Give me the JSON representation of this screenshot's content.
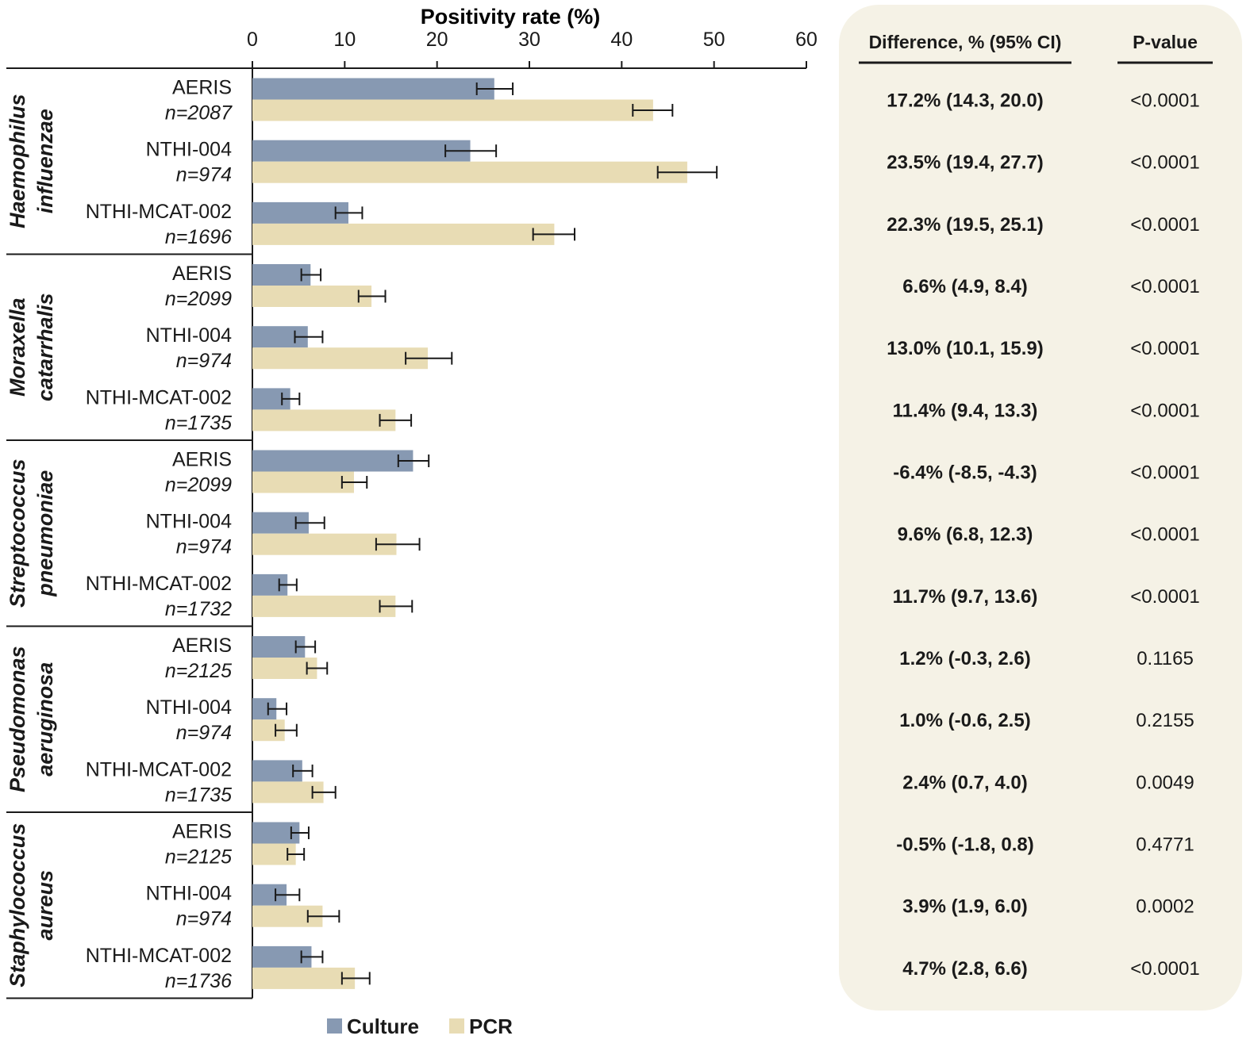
{
  "chart_data": {
    "type": "bar",
    "orientation": "horizontal",
    "xlabel": "Positivity rate (%)",
    "xlim": [
      0,
      60
    ],
    "xticks": [
      0,
      10,
      20,
      30,
      40,
      50,
      60
    ],
    "legend_position": "bottom",
    "series_names": [
      "Culture",
      "PCR"
    ],
    "table_headers": [
      "Difference, % (95% CI)",
      "P-value"
    ],
    "groups": [
      {
        "organism": [
          "Haemophilus",
          "influenzae"
        ],
        "rows": [
          {
            "study": "AERIS",
            "n": "n=2087",
            "culture": 26.2,
            "culture_ci": [
              24.3,
              28.2
            ],
            "pcr": 43.4,
            "pcr_ci": [
              41.2,
              45.5
            ],
            "difference": "17.2% (14.3, 20.0)",
            "pvalue": "<0.0001"
          },
          {
            "study": "NTHI-004",
            "n": "n=974",
            "culture": 23.6,
            "culture_ci": [
              20.9,
              26.4
            ],
            "pcr": 47.1,
            "pcr_ci": [
              43.9,
              50.3
            ],
            "difference": "23.5% (19.4, 27.7)",
            "pvalue": "<0.0001"
          },
          {
            "study": "NTHI-MCAT-002",
            "n": "n=1696",
            "culture": 10.4,
            "culture_ci": [
              9.0,
              11.9
            ],
            "pcr": 32.7,
            "pcr_ci": [
              30.4,
              34.9
            ],
            "difference": "22.3% (19.5, 25.1)",
            "pvalue": "<0.0001"
          }
        ]
      },
      {
        "organism": [
          "Moraxella",
          "catarrhalis"
        ],
        "rows": [
          {
            "study": "AERIS",
            "n": "n=2099",
            "culture": 6.3,
            "culture_ci": [
              5.3,
              7.4
            ],
            "pcr": 12.9,
            "pcr_ci": [
              11.5,
              14.4
            ],
            "difference": "6.6% (4.9, 8.4)",
            "pvalue": "<0.0001"
          },
          {
            "study": "NTHI-004",
            "n": "n=974",
            "culture": 6.0,
            "culture_ci": [
              4.6,
              7.6
            ],
            "pcr": 19.0,
            "pcr_ci": [
              16.6,
              21.6
            ],
            "difference": "13.0% (10.1, 15.9)",
            "pvalue": "<0.0001"
          },
          {
            "study": "NTHI-MCAT-002",
            "n": "n=1735",
            "culture": 4.1,
            "culture_ci": [
              3.2,
              5.1
            ],
            "pcr": 15.5,
            "pcr_ci": [
              13.8,
              17.2
            ],
            "difference": "11.4% (9.4, 13.3)",
            "pvalue": "<0.0001"
          }
        ]
      },
      {
        "organism": [
          "Streptococcus",
          "pneumoniae"
        ],
        "rows": [
          {
            "study": "AERIS",
            "n": "n=2099",
            "culture": 17.4,
            "culture_ci": [
              15.8,
              19.1
            ],
            "pcr": 11.0,
            "pcr_ci": [
              9.7,
              12.4
            ],
            "difference": "-6.4% (-8.5, -4.3)",
            "pvalue": "<0.0001"
          },
          {
            "study": "NTHI-004",
            "n": "n=974",
            "culture": 6.1,
            "culture_ci": [
              4.7,
              7.8
            ],
            "pcr": 15.6,
            "pcr_ci": [
              13.4,
              18.1
            ],
            "difference": "9.6% (6.8, 12.3)",
            "pvalue": "<0.0001"
          },
          {
            "study": "NTHI-MCAT-002",
            "n": "n=1732",
            "culture": 3.8,
            "culture_ci": [
              2.9,
              4.8
            ],
            "pcr": 15.5,
            "pcr_ci": [
              13.8,
              17.3
            ],
            "difference": "11.7% (9.7, 13.6)",
            "pvalue": "<0.0001"
          }
        ]
      },
      {
        "organism": [
          "Pseudomonas",
          "aeruginosa"
        ],
        "rows": [
          {
            "study": "AERIS",
            "n": "n=2125",
            "culture": 5.7,
            "culture_ci": [
              4.7,
              6.8
            ],
            "pcr": 7.0,
            "pcr_ci": [
              5.9,
              8.1
            ],
            "difference": "1.2% (-0.3, 2.6)",
            "pvalue": "0.1165"
          },
          {
            "study": "NTHI-004",
            "n": "n=974",
            "culture": 2.6,
            "culture_ci": [
              1.7,
              3.7
            ],
            "pcr": 3.5,
            "pcr_ci": [
              2.5,
              4.8
            ],
            "difference": "1.0% (-0.6, 2.5)",
            "pvalue": "0.2155"
          },
          {
            "study": "NTHI-MCAT-002",
            "n": "n=1735",
            "culture": 5.4,
            "culture_ci": [
              4.4,
              6.5
            ],
            "pcr": 7.7,
            "pcr_ci": [
              6.5,
              9.0
            ],
            "difference": "2.4% (0.7, 4.0)",
            "pvalue": "0.0049"
          }
        ]
      },
      {
        "organism": [
          "Staphylococcus",
          "aureus"
        ],
        "rows": [
          {
            "study": "AERIS",
            "n": "n=2125",
            "culture": 5.1,
            "culture_ci": [
              4.2,
              6.1
            ],
            "pcr": 4.7,
            "pcr_ci": [
              3.8,
              5.6
            ],
            "difference": "-0.5% (-1.8, 0.8)",
            "pvalue": "0.4771"
          },
          {
            "study": "NTHI-004",
            "n": "n=974",
            "culture": 3.7,
            "culture_ci": [
              2.5,
              5.1
            ],
            "pcr": 7.6,
            "pcr_ci": [
              6.0,
              9.4
            ],
            "difference": "3.9% (1.9, 6.0)",
            "pvalue": "0.0002"
          },
          {
            "study": "NTHI-MCAT-002",
            "n": "n=1736",
            "culture": 6.4,
            "culture_ci": [
              5.3,
              7.6
            ],
            "pcr": 11.1,
            "pcr_ci": [
              9.7,
              12.7
            ],
            "difference": "4.7% (2.8, 6.6)",
            "pvalue": "<0.0001"
          }
        ]
      }
    ]
  },
  "colors": {
    "culture": "#8799b2",
    "pcr": "#e8dcb4",
    "panel": "#f5f2e6",
    "axis": "#1a1a1a"
  }
}
